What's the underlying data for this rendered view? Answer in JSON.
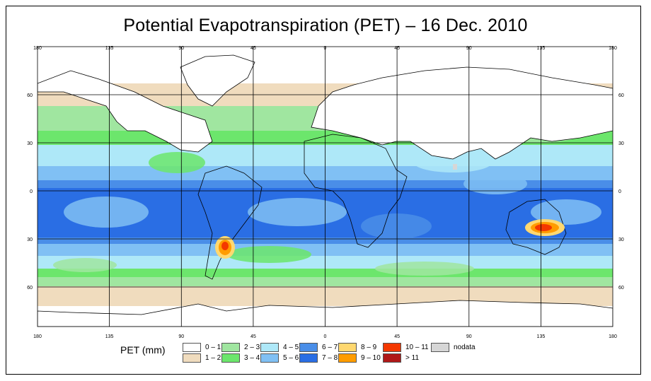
{
  "title": "Potential Evapotranspiration (PET) – 16 Dec. 2010",
  "axes": {
    "lon_labels": [
      "180",
      "135",
      "90",
      "45",
      "0",
      "45",
      "90",
      "135",
      "180"
    ],
    "lat_labels": [
      "60",
      "30",
      "0",
      "30",
      "60"
    ]
  },
  "legend": {
    "title": "PET (mm)",
    "items": [
      {
        "label": "0 – 1",
        "color": "#ffffff"
      },
      {
        "label": "1 – 2",
        "color": "#f0dcbe"
      },
      {
        "label": "2 – 3",
        "color": "#a0e6a0"
      },
      {
        "label": "3 – 4",
        "color": "#6ce66c"
      },
      {
        "label": "4 – 5",
        "color": "#aee8f8"
      },
      {
        "label": "5 – 6",
        "color": "#80c0f4"
      },
      {
        "label": "6 – 7",
        "color": "#4a8ee8"
      },
      {
        "label": "7 – 8",
        "color": "#2a6ee4"
      },
      {
        "label": "8 – 9",
        "color": "#ffd870"
      },
      {
        "label": "9 – 10",
        "color": "#ff9c00"
      },
      {
        "label": "10 – 11",
        "color": "#f43800"
      },
      {
        "label": "> 11",
        "color": "#b01818"
      },
      {
        "label": "nodata",
        "color": "#d6d6d6"
      }
    ]
  }
}
